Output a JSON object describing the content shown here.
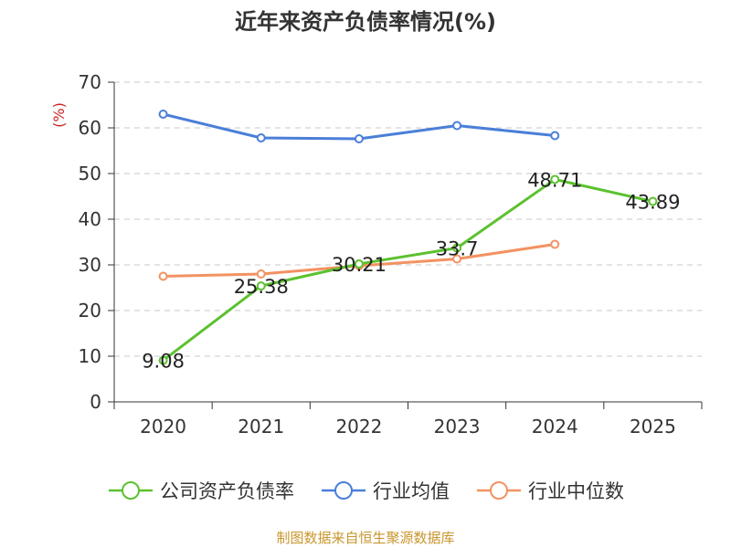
{
  "chart_data": {
    "type": "line",
    "title": "近年来资产负债率情况(%)",
    "ylabel": "(%)",
    "xlabel": "",
    "categories": [
      "2020",
      "2021",
      "2022",
      "2023",
      "2024",
      "2025"
    ],
    "ylim": [
      0,
      70
    ],
    "yticks": [
      0,
      10,
      20,
      30,
      40,
      50,
      60,
      70
    ],
    "grid": true,
    "legend_position": "bottom",
    "series": [
      {
        "name": "公司资产负债率",
        "color": "#5cc12f",
        "show_labels": true,
        "values": [
          9.08,
          25.38,
          30.21,
          33.7,
          48.71,
          43.89
        ],
        "labels": [
          "9.08",
          "25.38",
          "30.21",
          "33.7",
          "48.71",
          "43.89"
        ]
      },
      {
        "name": "行业均值",
        "color": "#4a7fd8",
        "show_labels": false,
        "values": [
          63.0,
          57.8,
          57.6,
          60.5,
          58.3,
          null
        ]
      },
      {
        "name": "行业中位数",
        "color": "#f39262",
        "show_labels": false,
        "values": [
          27.5,
          28.0,
          29.8,
          31.3,
          34.5,
          null
        ]
      }
    ]
  },
  "source_note": "制图数据来自恒生聚源数据库"
}
